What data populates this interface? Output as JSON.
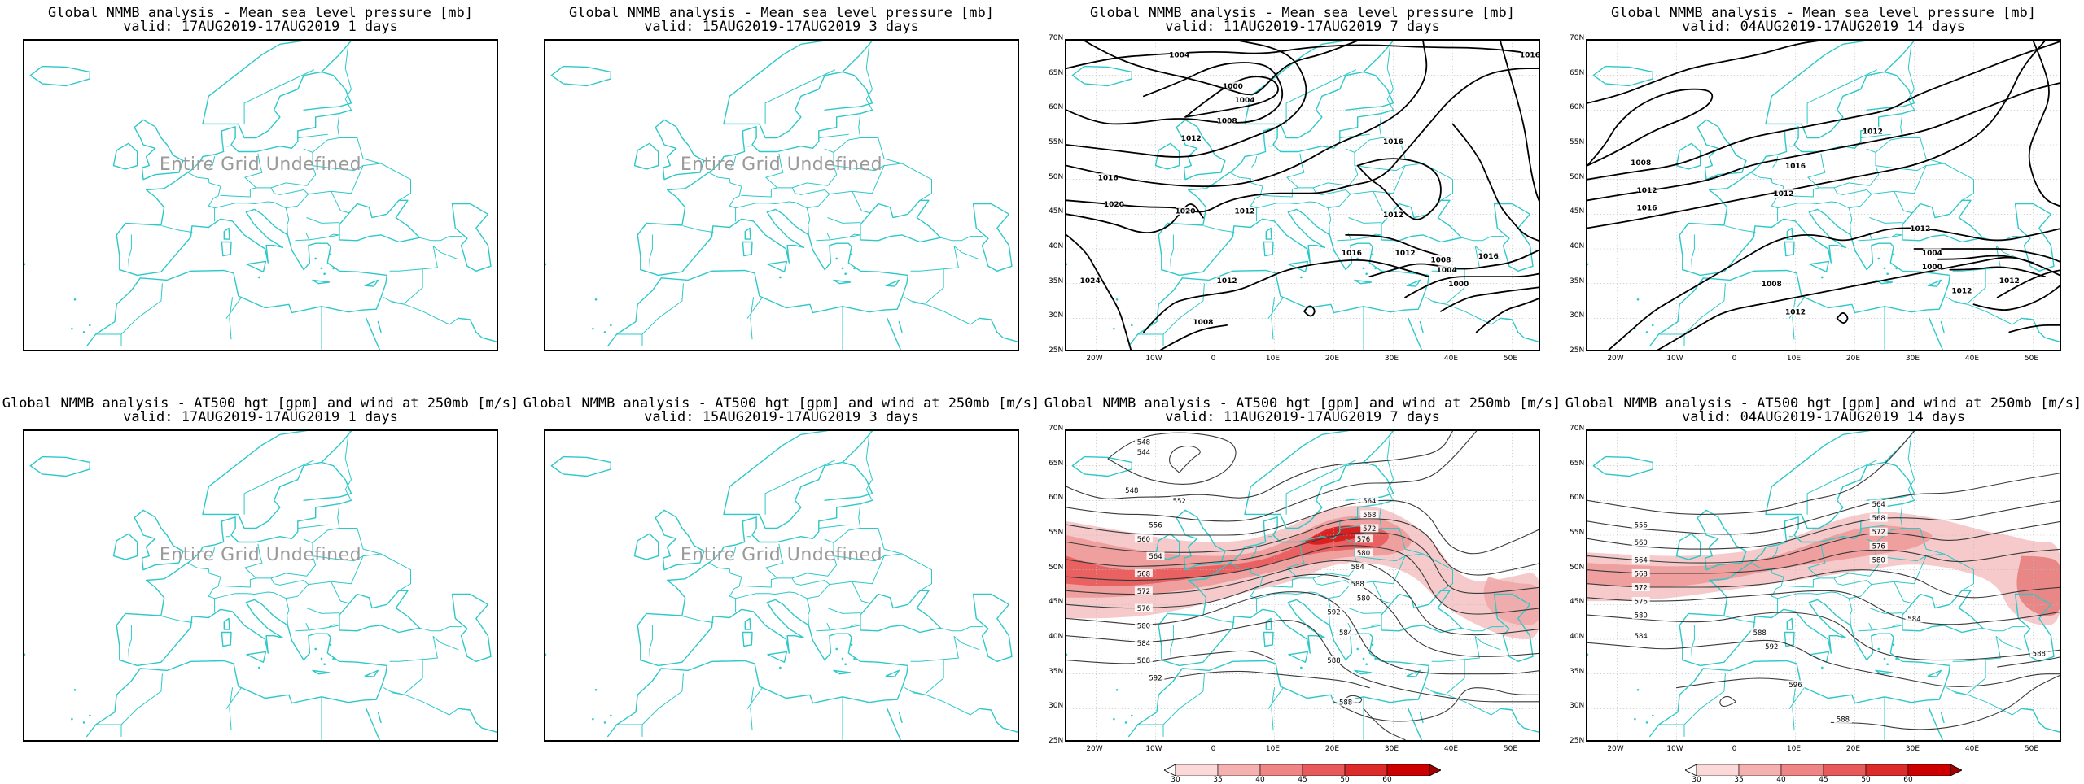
{
  "colors": {
    "coastline": "#2ec8c8",
    "isobar": "#000000",
    "jet": "#e0151b",
    "background": "#ffffff"
  },
  "axis": {
    "lat_labels": [
      "70N",
      "65N",
      "60N",
      "55N",
      "50N",
      "45N",
      "40N",
      "35N",
      "30N",
      "25N"
    ],
    "lon_labels": [
      "20W",
      "10W",
      "0",
      "10E",
      "20E",
      "30E",
      "40E",
      "50E"
    ]
  },
  "undefined_text": "Entire Grid Undefined",
  "colorbar": {
    "labels": [
      "30",
      "35",
      "40",
      "45",
      "50",
      "60"
    ]
  },
  "panels": [
    {
      "id": "mslp-1",
      "title": "Global NMMB analysis - Mean sea level pressure [mb]",
      "valid": "valid: 17AUG2019-17AUG2019   1 days",
      "undefined": true,
      "type": "mslp"
    },
    {
      "id": "mslp-3",
      "title": "Global NMMB analysis - Mean sea level pressure [mb]",
      "valid": "valid: 15AUG2019-17AUG2019   3 days",
      "undefined": true,
      "type": "mslp"
    },
    {
      "id": "mslp-7",
      "title": "Global NMMB analysis - Mean sea level pressure [mb]",
      "valid": "valid: 11AUG2019-17AUG2019   7 days",
      "undefined": false,
      "type": "mslp",
      "contour_labels": [
        "1004",
        "1000",
        "1016",
        "1004",
        "1008",
        "1012",
        "1016",
        "1016",
        "1020",
        "1020",
        "1012",
        "1012",
        "1016",
        "1012",
        "1008",
        "1004",
        "1000",
        "1016",
        "1024",
        "1012",
        "1008"
      ]
    },
    {
      "id": "mslp-14",
      "title": "Global NMMB analysis - Mean sea level pressure [mb]",
      "valid": "valid: 04AUG2019-17AUG2019   14 days",
      "undefined": false,
      "type": "mslp",
      "contour_labels": [
        "1012",
        "1008",
        "1016",
        "1012",
        "1016",
        "1012",
        "1012",
        "1008",
        "1004",
        "1000",
        "1012",
        "1012",
        "1012"
      ]
    },
    {
      "id": "z500-1",
      "title": "Global NMMB analysis - AT500 hgt [gpm] and wind at 250mb [m/s]",
      "valid": "valid: 17AUG2019-17AUG2019   1 days",
      "undefined": true,
      "type": "z500"
    },
    {
      "id": "z500-3",
      "title": "Global NMMB analysis - AT500 hgt [gpm] and wind at 250mb [m/s]",
      "valid": "valid: 15AUG2019-17AUG2019   3 days",
      "undefined": true,
      "type": "z500"
    },
    {
      "id": "z500-7",
      "title": "Global NMMB analysis - AT500 hgt [gpm] and wind at 250mb [m/s]",
      "valid": "valid: 11AUG2019-17AUG2019   7 days",
      "undefined": false,
      "type": "z500",
      "contour_labels": [
        "548",
        "544",
        "548",
        "552",
        "556",
        "560",
        "564",
        "568",
        "572",
        "576",
        "580",
        "584",
        "588",
        "592",
        "580",
        "584",
        "588",
        "564",
        "568",
        "572",
        "576",
        "580",
        "584",
        "588",
        "592",
        "588"
      ]
    },
    {
      "id": "z500-14",
      "title": "Global NMMB analysis - AT500 hgt [gpm] and wind at 250mb [m/s]",
      "valid": "valid: 04AUG2019-17AUG2019   14 days",
      "undefined": false,
      "type": "z500",
      "contour_labels": [
        "556",
        "560",
        "564",
        "568",
        "572",
        "576",
        "580",
        "584",
        "588",
        "592",
        "564",
        "568",
        "572",
        "576",
        "580",
        "584",
        "588",
        "596",
        "588"
      ]
    }
  ]
}
